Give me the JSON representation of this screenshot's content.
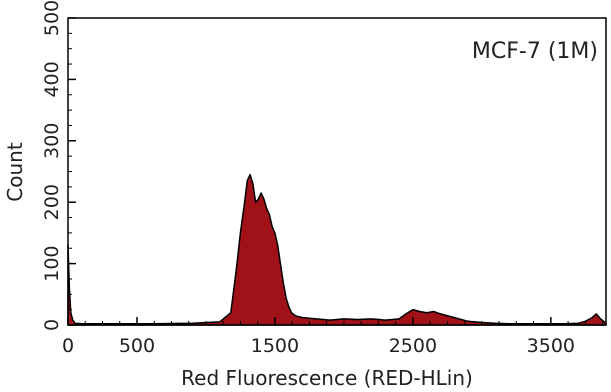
{
  "chart_data": {
    "type": "area",
    "annotation": "MCF-7 (1M)",
    "xlabel": "Red Fluorescence (RED-HLin)",
    "ylabel": "Count",
    "xlim": [
      0,
      3900
    ],
    "ylim": [
      0,
      500
    ],
    "x_ticks": [
      0,
      500,
      1500,
      2500,
      3500
    ],
    "y_ticks": [
      0,
      100,
      200,
      300,
      400,
      500
    ],
    "fill_color": "#a01218",
    "stroke_color": "#000000",
    "series": [
      {
        "x": [
          0,
          10,
          20,
          35,
          50,
          100,
          300,
          600,
          900,
          1100,
          1180,
          1220,
          1250,
          1280,
          1300,
          1320,
          1340,
          1360,
          1380,
          1400,
          1420,
          1440,
          1460,
          1480,
          1500,
          1520,
          1540,
          1560,
          1580,
          1600,
          1620,
          1650,
          1700,
          1800,
          1900,
          2000,
          2100,
          2200,
          2300,
          2400,
          2450,
          2500,
          2550,
          2600,
          2650,
          2700,
          2800,
          2900,
          3000,
          3100,
          3200,
          3300,
          3400,
          3500,
          3600,
          3700,
          3750,
          3800,
          3830,
          3860,
          3900
        ],
        "y": [
          130,
          60,
          20,
          8,
          3,
          2,
          2,
          2,
          3,
          5,
          20,
          90,
          150,
          200,
          235,
          245,
          230,
          200,
          205,
          215,
          205,
          190,
          180,
          160,
          150,
          130,
          100,
          70,
          45,
          30,
          20,
          15,
          12,
          10,
          8,
          10,
          9,
          10,
          8,
          10,
          18,
          25,
          22,
          20,
          22,
          18,
          12,
          6,
          4,
          3,
          2,
          2,
          2,
          2,
          2,
          3,
          6,
          12,
          18,
          10,
          3
        ]
      }
    ]
  }
}
